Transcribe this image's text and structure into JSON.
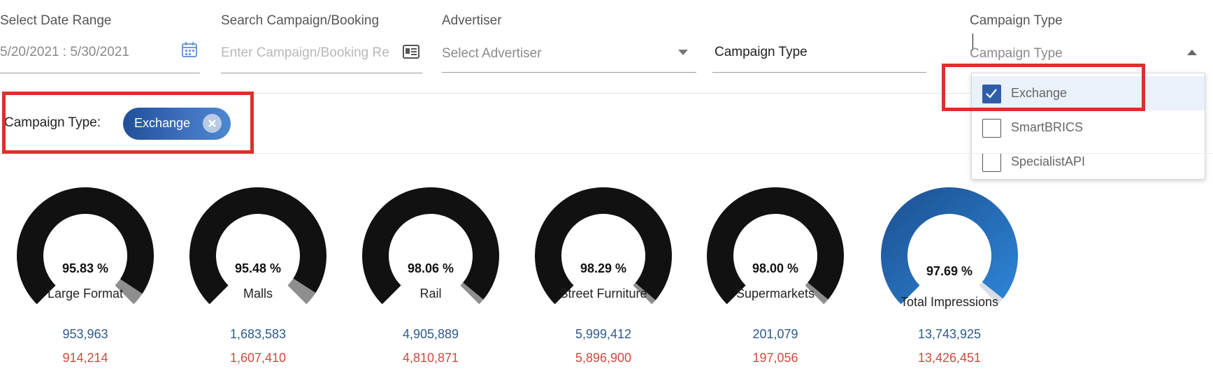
{
  "filters": {
    "date_range": {
      "label": "Select Date Range",
      "value": "5/20/2021 : 5/30/2021"
    },
    "search": {
      "label": "Search Campaign/Booking",
      "placeholder": "Enter Campaign/Booking Re",
      "value": ""
    },
    "advertiser": {
      "label": "Advertiser",
      "value": "Select Advertiser"
    },
    "campaign_type_1": {
      "value": "Campaign Type"
    },
    "campaign_type_2": {
      "label": "Campaign Type",
      "value": "Campaign Type",
      "options": [
        {
          "label": "Exchange",
          "checked": true
        },
        {
          "label": "SmartBRICS",
          "checked": false
        },
        {
          "label": "SpecialistAPI",
          "checked": false
        }
      ]
    }
  },
  "selected_filters": {
    "label": "Campaign Type:",
    "chips": [
      {
        "label": "Exchange"
      }
    ]
  },
  "gauges": [
    {
      "label": "Large Format",
      "percent_text": "95.83 %",
      "percent": 95.83,
      "value_primary": "953,963",
      "value_secondary": "914,214",
      "style": "black"
    },
    {
      "label": "Malls",
      "percent_text": "95.48 %",
      "percent": 95.48,
      "value_primary": "1,683,583",
      "value_secondary": "1,607,410",
      "style": "black"
    },
    {
      "label": "Rail",
      "percent_text": "98.06 %",
      "percent": 98.06,
      "value_primary": "4,905,889",
      "value_secondary": "4,810,871",
      "style": "black"
    },
    {
      "label": "Street Furniture",
      "percent_text": "98.29 %",
      "percent": 98.29,
      "value_primary": "5,999,412",
      "value_secondary": "5,896,900",
      "style": "black"
    },
    {
      "label": "Supermarkets",
      "percent_text": "98.00 %",
      "percent": 98.0,
      "value_primary": "201,079",
      "value_secondary": "197,056",
      "style": "black"
    },
    {
      "label": "Total Impressions",
      "percent_text": "97.69 %",
      "percent": 97.69,
      "value_primary": "13,743,925",
      "value_secondary": "13,426,451",
      "style": "blue"
    }
  ],
  "colors": {
    "primary_value": "#2d5a8f",
    "secondary_value": "#d04a3c",
    "gauge_fill_black": "#111111",
    "gauge_fill_blue_start": "#1c4f8f",
    "gauge_fill_blue_end": "#2e86d8",
    "gauge_remaining_black": "#8e8e8e",
    "gauge_remaining_blue": "#d9dde6",
    "highlight_red": "#d8322b",
    "chip_blue": "#2f5da8"
  }
}
